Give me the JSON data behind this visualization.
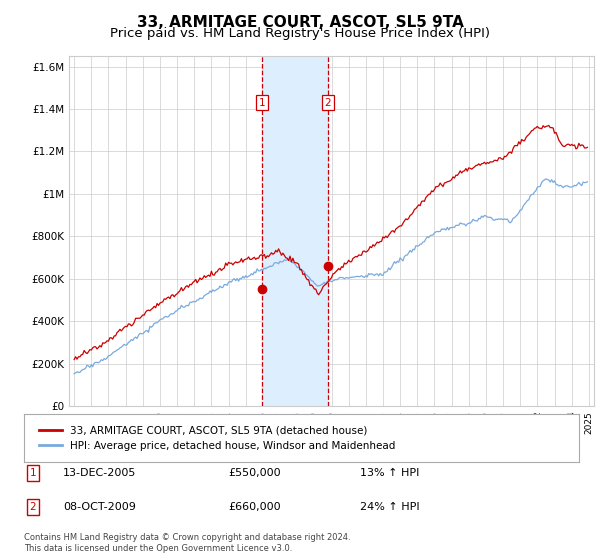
{
  "title": "33, ARMITAGE COURT, ASCOT, SL5 9TA",
  "subtitle": "Price paid vs. HM Land Registry's House Price Index (HPI)",
  "title_fontsize": 11,
  "subtitle_fontsize": 9.5,
  "ylim": [
    0,
    1650000
  ],
  "yticks": [
    0,
    200000,
    400000,
    600000,
    800000,
    1000000,
    1200000,
    1400000,
    1600000
  ],
  "ytick_labels": [
    "£0",
    "£200K",
    "£400K",
    "£600K",
    "£800K",
    "£1M",
    "£1.2M",
    "£1.4M",
    "£1.6M"
  ],
  "xlim_start": 1994.7,
  "xlim_end": 2025.3,
  "xtick_years": [
    1995,
    1996,
    1997,
    1998,
    1999,
    2000,
    2001,
    2002,
    2003,
    2004,
    2005,
    2006,
    2007,
    2008,
    2009,
    2010,
    2011,
    2012,
    2013,
    2014,
    2015,
    2016,
    2017,
    2018,
    2019,
    2020,
    2021,
    2022,
    2023,
    2024,
    2025
  ],
  "transaction1_x": 2005.95,
  "transaction1_y": 550000,
  "transaction2_x": 2009.78,
  "transaction2_y": 660000,
  "red_line_color": "#cc0000",
  "blue_line_color": "#7aaadd",
  "shade_color": "#ddeeff",
  "vline_color": "#cc0000",
  "grid_color": "#cccccc",
  "background_color": "#ffffff",
  "legend_entry1": "33, ARMITAGE COURT, ASCOT, SL5 9TA (detached house)",
  "legend_entry2": "HPI: Average price, detached house, Windsor and Maidenhead",
  "note1_label": "1",
  "note1_date": "13-DEC-2005",
  "note1_price": "£550,000",
  "note1_hpi": "13% ↑ HPI",
  "note2_label": "2",
  "note2_date": "08-OCT-2009",
  "note2_price": "£660,000",
  "note2_hpi": "24% ↑ HPI",
  "footer": "Contains HM Land Registry data © Crown copyright and database right 2024.\nThis data is licensed under the Open Government Licence v3.0."
}
